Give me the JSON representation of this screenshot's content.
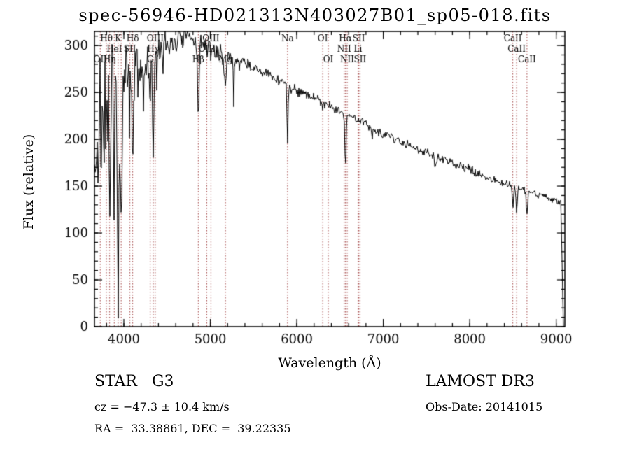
{
  "header": {
    "title": "spec-56946-HD021313N403027B01_sp05-018.fits"
  },
  "footer": {
    "class_label": "STAR   G3",
    "survey": "LAMOST DR3",
    "cz": "cz = −47.3 ± 10.4 km/s",
    "obs_date": "Obs-Date: 20141015",
    "coords": "RA =  33.38861, DEC =  39.22335"
  },
  "chart_data": {
    "type": "line",
    "title": "spec-56946-HD021313N403027B01_sp05-018.fits",
    "xlabel": "Wavelength (Å)",
    "ylabel": "Flux (relative)",
    "xlim": [
      3660,
      9100
    ],
    "ylim": [
      0,
      315
    ],
    "xticks": [
      4000,
      5000,
      6000,
      7000,
      8000,
      9000
    ],
    "yticks": [
      0,
      50,
      100,
      150,
      200,
      250,
      300
    ],
    "x_minor_step": 200,
    "y_minor_step": 10,
    "grid": false,
    "legend": "none",
    "line_color": "#000000",
    "marker_line_color": "#a04040",
    "axis_color": "#000000",
    "noise_seed": 7,
    "continuum": [
      [
        3700,
        190
      ],
      [
        3750,
        222
      ],
      [
        3800,
        235
      ],
      [
        3900,
        246
      ],
      [
        4000,
        256
      ],
      [
        4100,
        266
      ],
      [
        4200,
        278
      ],
      [
        4300,
        288
      ],
      [
        4400,
        295
      ],
      [
        4500,
        300
      ],
      [
        4600,
        305
      ],
      [
        4700,
        308
      ],
      [
        4800,
        306
      ],
      [
        4900,
        301
      ],
      [
        5000,
        296
      ],
      [
        5100,
        292
      ],
      [
        5200,
        288
      ],
      [
        5300,
        284
      ],
      [
        5400,
        280
      ],
      [
        5500,
        276
      ],
      [
        5600,
        271
      ],
      [
        5700,
        267
      ],
      [
        5800,
        263
      ],
      [
        5900,
        258
      ],
      [
        6000,
        253
      ],
      [
        6100,
        249
      ],
      [
        6200,
        244
      ],
      [
        6300,
        240
      ],
      [
        6400,
        235
      ],
      [
        6500,
        230
      ],
      [
        6600,
        225
      ],
      [
        6700,
        221
      ],
      [
        6800,
        217
      ],
      [
        6900,
        211
      ],
      [
        7000,
        206
      ],
      [
        7100,
        202
      ],
      [
        7200,
        198
      ],
      [
        7300,
        194
      ],
      [
        7400,
        190
      ],
      [
        7500,
        186
      ],
      [
        7600,
        182
      ],
      [
        7700,
        178
      ],
      [
        7800,
        174
      ],
      [
        7900,
        171
      ],
      [
        8000,
        167
      ],
      [
        8100,
        163
      ],
      [
        8200,
        160
      ],
      [
        8300,
        156
      ],
      [
        8400,
        153
      ],
      [
        8500,
        150
      ],
      [
        8600,
        147
      ],
      [
        8700,
        144
      ],
      [
        8800,
        141
      ],
      [
        8900,
        138
      ],
      [
        9000,
        134
      ],
      [
        9100,
        130
      ]
    ],
    "absorption_features": [
      {
        "center": 3798,
        "depth": 100,
        "sigma": 8
      },
      {
        "center": 3835,
        "depth": 120,
        "sigma": 8
      },
      {
        "center": 3889,
        "depth": 110,
        "sigma": 8
      },
      {
        "center": 3934,
        "depth": 150,
        "sigma": 10
      },
      {
        "center": 3969,
        "depth": 160,
        "sigma": 10
      },
      {
        "center": 4070,
        "depth": 60,
        "sigma": 5
      },
      {
        "center": 4102,
        "depth": 95,
        "sigma": 9
      },
      {
        "center": 4226,
        "depth": 70,
        "sigma": 3
      },
      {
        "center": 4305,
        "depth": 40,
        "sigma": 12
      },
      {
        "center": 4340,
        "depth": 110,
        "sigma": 8
      },
      {
        "center": 4383,
        "depth": 65,
        "sigma": 3
      },
      {
        "center": 4455,
        "depth": 45,
        "sigma": 3
      },
      {
        "center": 4861,
        "depth": 80,
        "sigma": 8
      },
      {
        "center": 5175,
        "depth": 30,
        "sigma": 12
      },
      {
        "center": 5270,
        "depth": 55,
        "sigma": 4
      },
      {
        "center": 5893,
        "depth": 70,
        "sigma": 6
      },
      {
        "center": 6300,
        "depth": 10,
        "sigma": 5
      },
      {
        "center": 6563,
        "depth": 55,
        "sigma": 7
      },
      {
        "center": 6870,
        "depth": 10,
        "sigma": 8
      },
      {
        "center": 7605,
        "depth": 14,
        "sigma": 10
      },
      {
        "center": 8498,
        "depth": 20,
        "sigma": 7
      },
      {
        "center": 8542,
        "depth": 25,
        "sigma": 8
      },
      {
        "center": 8662,
        "depth": 22,
        "sigma": 8
      }
    ],
    "noise_profile": [
      [
        3700,
        55
      ],
      [
        3900,
        48
      ],
      [
        4100,
        30
      ],
      [
        4300,
        16
      ],
      [
        4600,
        9
      ],
      [
        5000,
        7
      ],
      [
        5500,
        5
      ],
      [
        6000,
        4
      ],
      [
        7000,
        3.5
      ],
      [
        8000,
        3.5
      ],
      [
        9100,
        3
      ]
    ],
    "edge_drop": {
      "start": 9055,
      "end": 9082
    },
    "line_markers": [
      {
        "label": "OII",
        "wl": 3727,
        "row": 2
      },
      {
        "label": "Hθ",
        "wl": 3798,
        "row": 0
      },
      {
        "label": "Hη",
        "wl": 3835,
        "row": 2
      },
      {
        "label": "HeI",
        "wl": 3889,
        "row": 1
      },
      {
        "label": "K",
        "wl": 3934,
        "row": 0
      },
      {
        "label": "",
        "wl": 3969,
        "row": 0
      },
      {
        "label": "SII",
        "wl": 4070,
        "row": 1
      },
      {
        "label": "Hδ",
        "wl": 4102,
        "row": 0
      },
      {
        "label": "G",
        "wl": 4305,
        "row": 2
      },
      {
        "label": "Hγ",
        "wl": 4340,
        "row": 1
      },
      {
        "label": "OIII",
        "wl": 4363,
        "row": 0
      },
      {
        "label": "Hβ",
        "wl": 4861,
        "row": 2
      },
      {
        "label": "OIII",
        "wl": 4959,
        "row": 1
      },
      {
        "label": "OIII",
        "wl": 5007,
        "row": 0
      },
      {
        "label": "Mg",
        "wl": 5175,
        "row": 2
      },
      {
        "label": "Na",
        "wl": 5893,
        "row": 0
      },
      {
        "label": "OI",
        "wl": 6300,
        "row": 0
      },
      {
        "label": "OI",
        "wl": 6364,
        "row": 2
      },
      {
        "label": "NII",
        "wl": 6548,
        "row": 1
      },
      {
        "label": "Hα",
        "wl": 6563,
        "row": 0
      },
      {
        "label": "NII",
        "wl": 6583,
        "row": 2
      },
      {
        "label": "Li",
        "wl": 6708,
        "row": 1
      },
      {
        "label": "SII",
        "wl": 6717,
        "row": 0
      },
      {
        "label": "SII",
        "wl": 6731,
        "row": 2
      },
      {
        "label": "CaII",
        "wl": 8498,
        "row": 0
      },
      {
        "label": "CaII",
        "wl": 8542,
        "row": 1
      },
      {
        "label": "CaII",
        "wl": 8662,
        "row": 2
      }
    ]
  }
}
